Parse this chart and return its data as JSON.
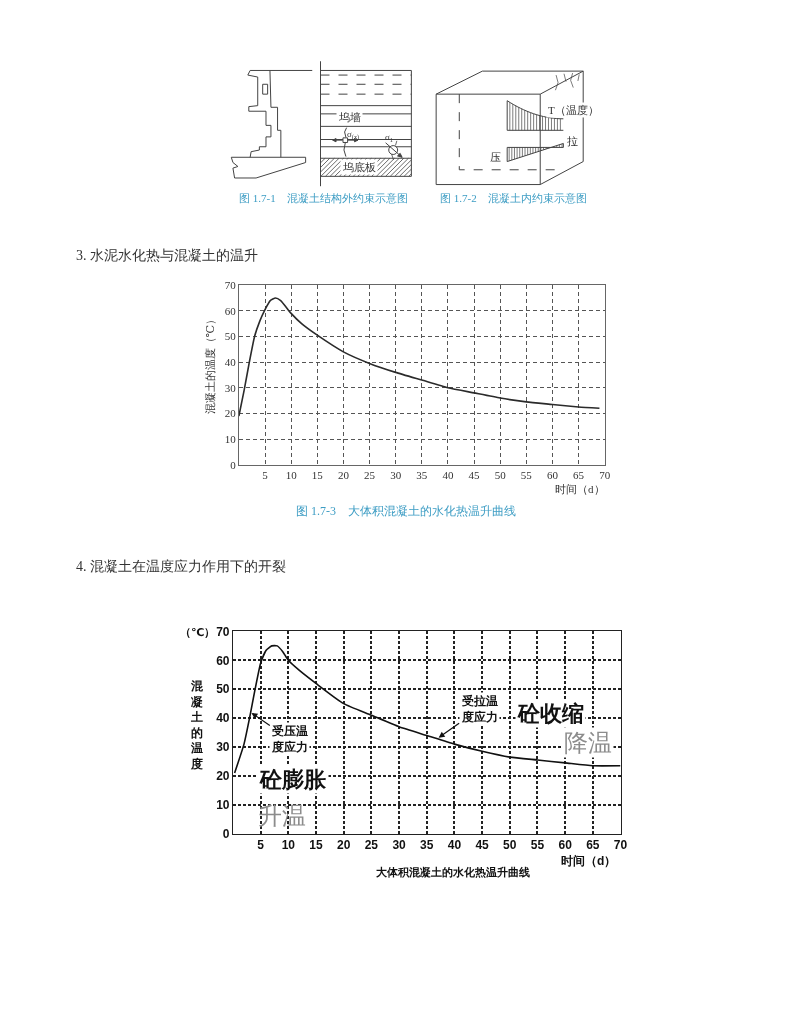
{
  "chart_data": [
    {
      "type": "other",
      "annotations": [
        "坞墙",
        "坞底板",
        "σ$_{(x)}$",
        "σ$_{1}$",
        "T（温度）",
        "拉",
        "压",
        "图 1.7-1　混凝土结构外约束示意图",
        "图 1.7-2　混凝土内约束示意图"
      ]
    },
    {
      "type": "line",
      "title": "3. 水泥水化热与混凝土的温升",
      "xlabel": "时间（d）",
      "ylabel": "混凝土的温度（℃）",
      "x": [
        0,
        1,
        2,
        3,
        4,
        5,
        6,
        7,
        8,
        10,
        12,
        15,
        20,
        25,
        30,
        35,
        40,
        45,
        50,
        55,
        60,
        65,
        69
      ],
      "series": [
        {
          "color": "#2b2b2b",
          "values": [
            19,
            29,
            40,
            50,
            56,
            60.5,
            64,
            65,
            64,
            59,
            55,
            50.5,
            44,
            39.5,
            36,
            33,
            30,
            28,
            26,
            24.5,
            23.5,
            22.5,
            22
          ]
        }
      ],
      "xlim": [
        0,
        70
      ],
      "ylim": [
        0,
        70
      ],
      "xticks": [
        5,
        10,
        15,
        20,
        25,
        30,
        35,
        40,
        45,
        50,
        55,
        60,
        65,
        70
      ],
      "yticks": [
        0,
        10,
        20,
        30,
        40,
        50,
        60,
        70
      ],
      "grid": true,
      "annotations": [
        "图 1.7-3　大体积混凝土的水化热温升曲线"
      ]
    },
    {
      "type": "line",
      "title": "4. 混凝土在温度应力作用下的开裂",
      "xlabel": "时间（d）",
      "ylabel": "混凝土的温度",
      "x": [
        0.3,
        2,
        3,
        4,
        5,
        6,
        7,
        8,
        9,
        10,
        12,
        15,
        20,
        25,
        30,
        35,
        40,
        45,
        50,
        55,
        60,
        65,
        70
      ],
      "series": [
        {
          "color": "#111111",
          "values": [
            21,
            31,
            40,
            50,
            59,
            63.5,
            65,
            65,
            63,
            60,
            56.5,
            52,
            45,
            41,
            37,
            34,
            31,
            28.5,
            26.5,
            25.5,
            24.5,
            23.5,
            23.5
          ]
        }
      ],
      "xlim": [
        0,
        70
      ],
      "ylim": [
        0,
        70
      ],
      "xticks": [
        5,
        10,
        15,
        20,
        25,
        30,
        35,
        40,
        45,
        50,
        55,
        60,
        65,
        70
      ],
      "yticks": [
        0,
        10,
        20,
        30,
        40,
        50,
        60,
        70
      ],
      "grid": true,
      "annotations": [
        "（℃）",
        {
          "text": "受压温度应力",
          "x": 3.2,
          "y": 42
        },
        {
          "text": "受拉温度应力",
          "x": 37,
          "y": 33
        },
        "砼膨胀",
        "升温",
        "砼收缩",
        "降温",
        "大体积混凝土的水化热温升曲线"
      ]
    }
  ]
}
